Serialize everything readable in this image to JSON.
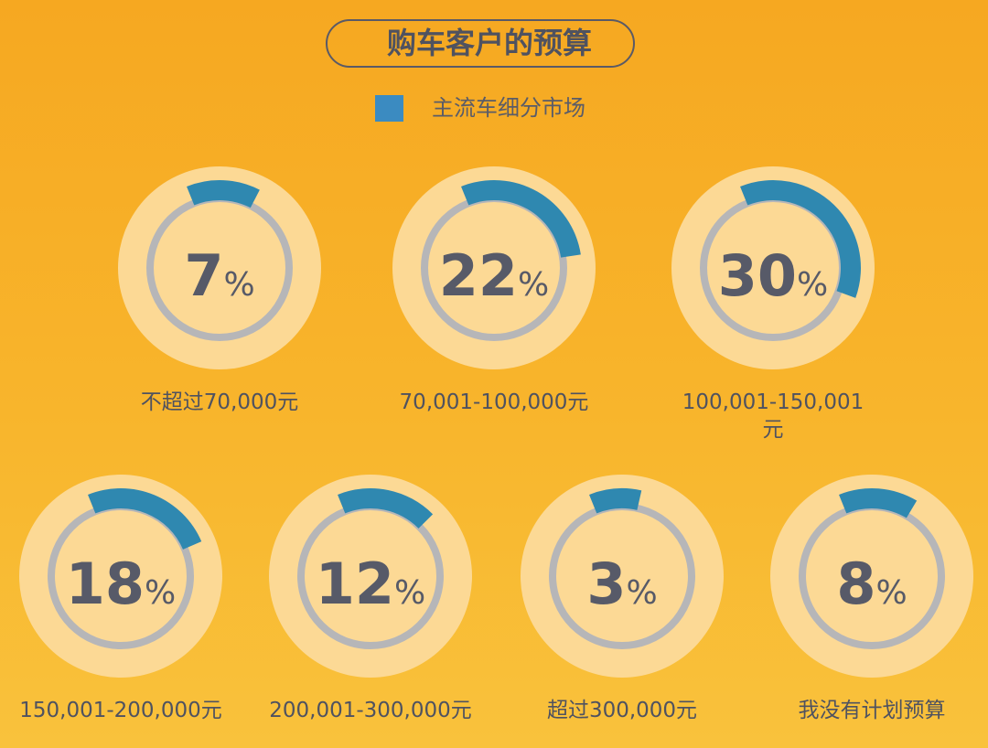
{
  "title": "购车客户的预算",
  "legend": {
    "label": "主流车细分市场",
    "color": "#3b8bc1"
  },
  "colors": {
    "arc": "#2f88b0",
    "track": "#b6b6b8",
    "disc": "#fcd995",
    "text": "#575a68"
  },
  "chart_data": {
    "type": "donut-gauge",
    "unit": "%",
    "series": [
      {
        "name": "主流车细分市场",
        "values": [
          7,
          22,
          30,
          18,
          12,
          3,
          8
        ]
      }
    ],
    "categories": [
      "不超过70,000元",
      "70,001-100,000元",
      "100,001-150,001 元",
      "150,001-200,000元",
      "200,001-300,000元",
      "超过300,000元",
      "我没有计划预算"
    ],
    "items": [
      {
        "label": "不超过70,000元",
        "value": 7,
        "display": "7"
      },
      {
        "label": "70,001-100,000元",
        "value": 22,
        "display": "22"
      },
      {
        "label": "100,001-150,001\n元",
        "value": 30,
        "display": "30"
      },
      {
        "label": "150,001-200,000元",
        "value": 18,
        "display": "18"
      },
      {
        "label": "200,001-300,000元",
        "value": 12,
        "display": "12"
      },
      {
        "label": "超过300,000元",
        "value": 3,
        "display": "3"
      },
      {
        "label": "我没有计划预算",
        "value": 8,
        "display": "8"
      }
    ]
  }
}
